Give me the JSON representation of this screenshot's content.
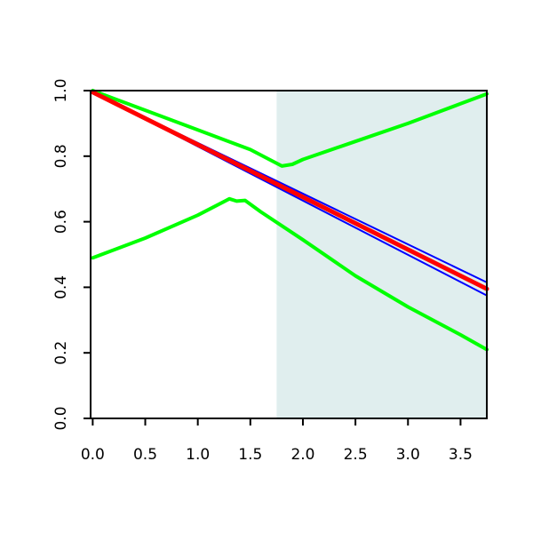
{
  "chart_data": {
    "type": "line",
    "title": "",
    "xlabel": "",
    "ylabel": "",
    "xlim": [
      -0.02,
      3.75
    ],
    "ylim": [
      0.0,
      1.0
    ],
    "x_ticks": [
      "0.0",
      "0.5",
      "1.0",
      "1.5",
      "2.0",
      "2.5",
      "3.0",
      "3.5"
    ],
    "y_ticks": [
      "0.0",
      "0.2",
      "0.4",
      "0.6",
      "0.8",
      "1.0"
    ],
    "grid": false,
    "legend": "none",
    "shaded_region": {
      "x_start": 1.75,
      "x_end": 3.75,
      "color": "#e0eeee"
    },
    "series": [
      {
        "color": "#00ff00",
        "width": 4,
        "x": [
          0.0,
          0.5,
          1.0,
          1.5,
          1.8,
          1.9,
          2.0,
          2.5,
          3.0,
          3.5,
          3.75
        ],
        "y": [
          1.0,
          0.94,
          0.88,
          0.82,
          0.77,
          0.775,
          0.79,
          0.845,
          0.9,
          0.96,
          0.99
        ]
      },
      {
        "color": "#00ff00",
        "width": 4,
        "x": [
          0.0,
          0.5,
          1.0,
          1.3,
          1.37,
          1.45,
          1.6,
          2.0,
          2.5,
          3.0,
          3.5,
          3.75
        ],
        "y": [
          0.49,
          0.55,
          0.62,
          0.67,
          0.663,
          0.665,
          0.63,
          0.545,
          0.435,
          0.34,
          0.255,
          0.21
        ]
      },
      {
        "color": "#0000ff",
        "width": 2,
        "x": [
          0.0,
          3.75
        ],
        "y": [
          0.995,
          0.375
        ]
      },
      {
        "color": "#0000ff",
        "width": 2,
        "x": [
          0.0,
          3.75
        ],
        "y": [
          0.995,
          0.415
        ]
      },
      {
        "color": "#ff0000",
        "width": 5,
        "x": [
          0.0,
          3.75
        ],
        "y": [
          0.995,
          0.395
        ]
      }
    ]
  }
}
